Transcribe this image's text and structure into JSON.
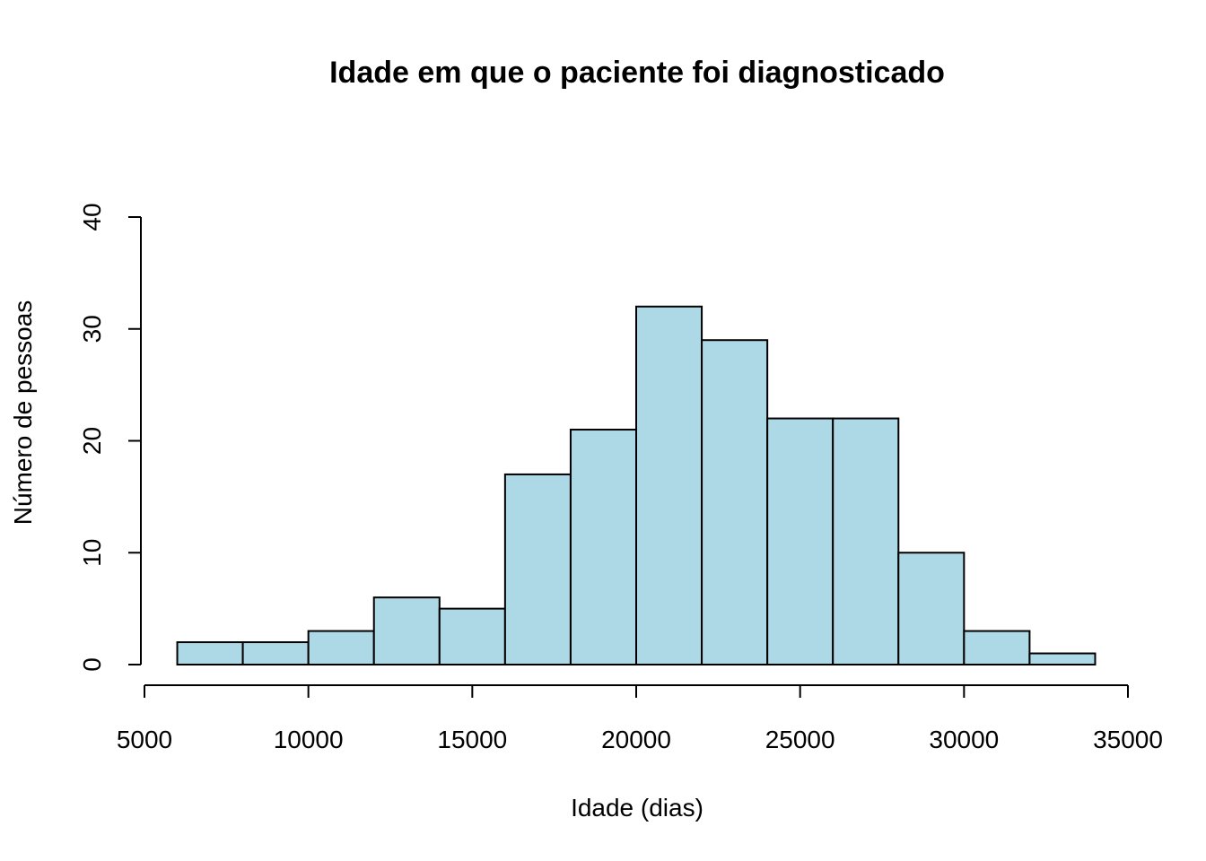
{
  "chart_data": {
    "type": "bar",
    "subtype": "histogram",
    "title": "Idade em que o paciente foi diagnosticado",
    "xlabel": "Idade (dias)",
    "ylabel": "Número de pessoas",
    "bins": [
      {
        "start": 6000,
        "end": 8000,
        "count": 2
      },
      {
        "start": 8000,
        "end": 10000,
        "count": 2
      },
      {
        "start": 10000,
        "end": 12000,
        "count": 3
      },
      {
        "start": 12000,
        "end": 14000,
        "count": 6
      },
      {
        "start": 14000,
        "end": 16000,
        "count": 5
      },
      {
        "start": 16000,
        "end": 18000,
        "count": 17
      },
      {
        "start": 18000,
        "end": 20000,
        "count": 21
      },
      {
        "start": 20000,
        "end": 22000,
        "count": 32
      },
      {
        "start": 22000,
        "end": 24000,
        "count": 29
      },
      {
        "start": 24000,
        "end": 26000,
        "count": 22
      },
      {
        "start": 26000,
        "end": 28000,
        "count": 22
      },
      {
        "start": 28000,
        "end": 30000,
        "count": 10
      },
      {
        "start": 30000,
        "end": 32000,
        "count": 3
      },
      {
        "start": 32000,
        "end": 34000,
        "count": 1
      }
    ],
    "xticks": [
      "5000",
      "10000",
      "15000",
      "20000",
      "25000",
      "30000",
      "35000"
    ],
    "yticks": [
      "0",
      "10",
      "20",
      "30",
      "40"
    ],
    "xlim": [
      5000,
      35000
    ],
    "ylim": [
      0,
      40
    ],
    "bar_color": "#add8e6",
    "edge_color": "#000000",
    "grid": false
  }
}
